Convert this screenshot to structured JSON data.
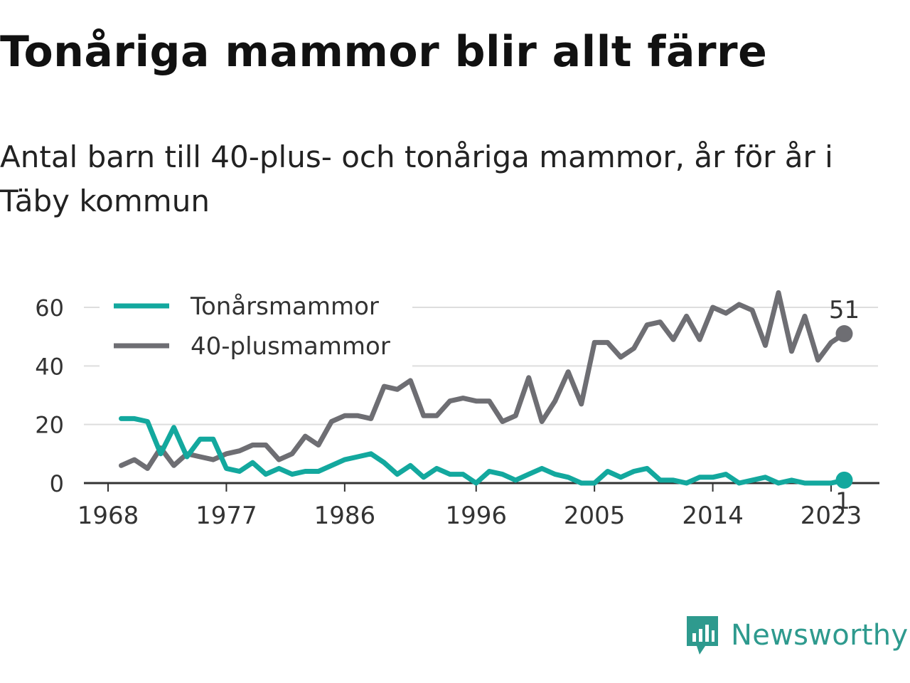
{
  "header": {
    "title": "Tonåriga mammor blir allt färre",
    "subtitle": "Antal barn till 40-plus- och tonåriga mammor, år för år i Täby kommun"
  },
  "brand": {
    "name": "Newsworthy",
    "icon": "newsworthy-logo-icon",
    "color": "#2e9a8e"
  },
  "chart_data": {
    "type": "line",
    "x": [
      1969,
      1970,
      1971,
      1972,
      1973,
      1974,
      1975,
      1976,
      1977,
      1978,
      1979,
      1980,
      1981,
      1982,
      1983,
      1984,
      1985,
      1986,
      1987,
      1988,
      1989,
      1990,
      1991,
      1992,
      1993,
      1994,
      1995,
      1996,
      1997,
      1998,
      1999,
      2000,
      2001,
      2002,
      2003,
      2004,
      2005,
      2006,
      2007,
      2008,
      2009,
      2010,
      2011,
      2012,
      2013,
      2014,
      2015,
      2016,
      2017,
      2018,
      2019,
      2020,
      2021,
      2022,
      2023,
      2024
    ],
    "series": [
      {
        "name": "Tonårsmammor",
        "color": "#13a89e",
        "values": [
          22,
          22,
          21,
          10,
          19,
          9,
          15,
          15,
          5,
          4,
          7,
          3,
          5,
          3,
          4,
          4,
          6,
          8,
          9,
          10,
          7,
          3,
          6,
          2,
          5,
          3,
          3,
          0,
          4,
          3,
          1,
          3,
          5,
          3,
          2,
          0,
          0,
          4,
          2,
          4,
          5,
          1,
          1,
          0,
          2,
          2,
          3,
          0,
          1,
          2,
          0,
          1,
          0,
          0,
          0,
          1
        ],
        "end_label": "1"
      },
      {
        "name": "40-plusmammor",
        "color": "#6e6e73",
        "values": [
          6,
          8,
          5,
          12,
          6,
          10,
          9,
          8,
          10,
          11,
          13,
          13,
          8,
          10,
          16,
          13,
          21,
          23,
          23,
          22,
          33,
          32,
          35,
          23,
          23,
          28,
          29,
          28,
          28,
          21,
          23,
          36,
          21,
          28,
          38,
          27,
          48,
          48,
          43,
          46,
          54,
          55,
          49,
          57,
          49,
          60,
          58,
          61,
          59,
          47,
          65,
          45,
          57,
          42,
          48,
          51
        ],
        "end_label": "51"
      }
    ],
    "xticks": [
      1968,
      1977,
      1986,
      1996,
      2005,
      2014,
      2023
    ],
    "yticks": [
      0,
      20,
      40,
      60
    ],
    "xlim": [
      1968,
      2025
    ],
    "ylim": [
      0,
      65
    ],
    "legend": "top-left",
    "grid": true
  }
}
